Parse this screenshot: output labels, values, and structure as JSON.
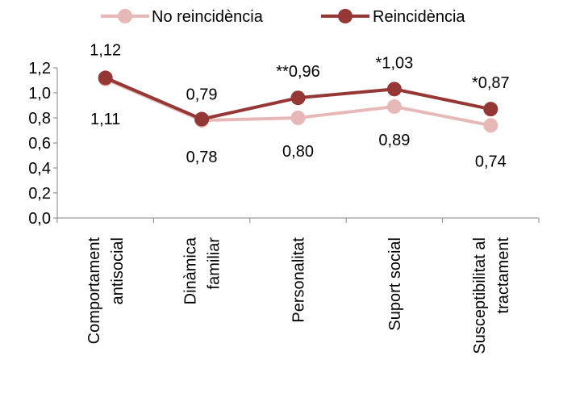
{
  "chart_data": {
    "type": "line",
    "categories": [
      [
        "Comportament",
        "antisocial"
      ],
      [
        "Dinàmica",
        "familiar"
      ],
      [
        "Personalitat"
      ],
      [
        "Suport social"
      ],
      [
        "Susceptibilitat al",
        "tractament"
      ]
    ],
    "series": [
      {
        "name": "No reincidència",
        "color": "#e6b8b7",
        "values": [
          1.11,
          0.78,
          0.8,
          0.89,
          0.74
        ],
        "labels": [
          "1,11",
          "0,78",
          "0,80",
          "0,89",
          "0,74"
        ]
      },
      {
        "name": "Reincidència",
        "color": "#953735",
        "values": [
          1.12,
          0.79,
          0.96,
          1.03,
          0.87
        ],
        "labels": [
          "1,12",
          "0,79",
          "**0,96",
          "*1,03",
          "*0,87"
        ]
      }
    ],
    "ylim": [
      0,
      1.2
    ],
    "yticks": [
      "0,0",
      "0,2",
      "0,4",
      "0,6",
      "0,8",
      "1,0",
      "1,2"
    ],
    "legend": "top",
    "grid": false
  }
}
